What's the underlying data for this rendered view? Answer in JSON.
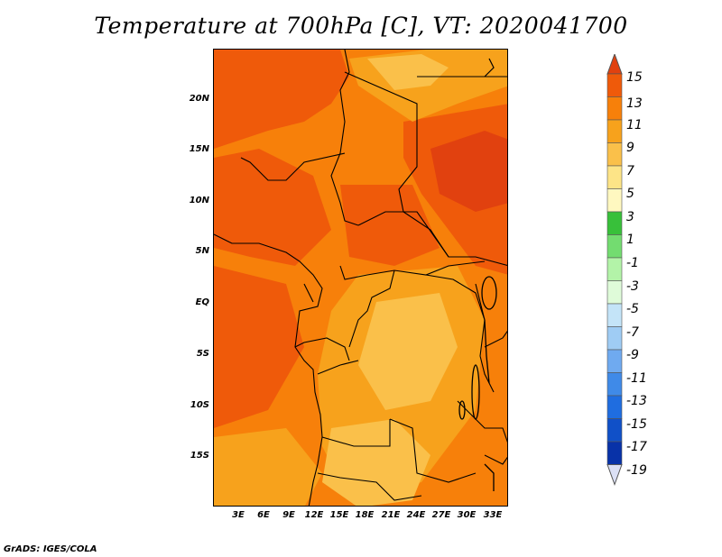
{
  "title": "Temperature at 700hPa [C], VT: 2020041700",
  "footer": "GrADS: IGES/COLA",
  "map": {
    "variable": "Temperature at 700hPa",
    "units": "C",
    "valid_time": "2020041700",
    "lat_ticks": [
      "20N",
      "15N",
      "10N",
      "5N",
      "EQ",
      "5S",
      "10S",
      "15S"
    ],
    "lon_ticks": [
      "3E",
      "6E",
      "9E",
      "12E",
      "15E",
      "18E",
      "21E",
      "24E",
      "27E",
      "30E",
      "33E"
    ]
  },
  "colorbar": {
    "labels": [
      "15",
      "13",
      "11",
      "9",
      "7",
      "5",
      "3",
      "1",
      "-1",
      "-3",
      "-5",
      "-7",
      "-9",
      "-11",
      "-13",
      "-15",
      "-17",
      "-19"
    ],
    "colors": [
      "#e1410f",
      "#ef5a0a",
      "#f7800a",
      "#f7a21c",
      "#fac04a",
      "#fde487",
      "#fff8c0",
      "#38c03a",
      "#73dc70",
      "#b3f3a8",
      "#dffbd9",
      "#c4e4f8",
      "#9fccf4",
      "#6faaf0",
      "#3f8ae8",
      "#1f6de0",
      "#1050c8",
      "#0832a8",
      "#061a80"
    ]
  }
}
